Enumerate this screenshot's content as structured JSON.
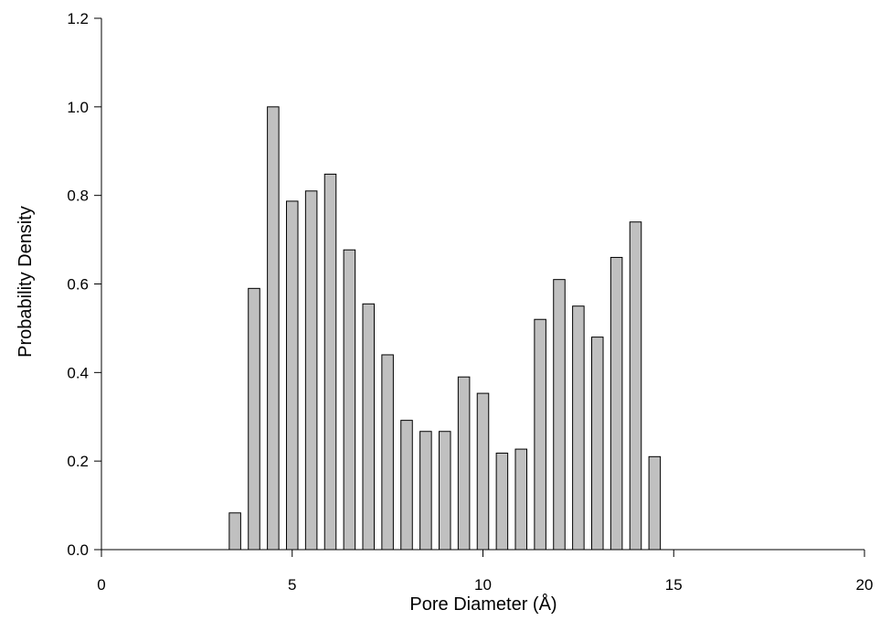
{
  "chart_data": {
    "type": "bar",
    "title": "",
    "xlabel": "Pore Diameter (Å)",
    "ylabel": "Probability Density",
    "xlim": [
      0,
      20
    ],
    "ylim": [
      0,
      1.2
    ],
    "x_ticks": [
      0,
      5,
      10,
      15,
      20
    ],
    "x_tick_labels": [
      "0",
      "5",
      "10",
      "15",
      "20"
    ],
    "y_ticks": [
      0.0,
      0.2,
      0.4,
      0.6,
      0.8,
      1.0,
      1.2
    ],
    "y_tick_labels": [
      "0.0",
      "0.2",
      "0.4",
      "0.6",
      "0.8",
      "1.0",
      "1.2"
    ],
    "grid": false,
    "legend": "none",
    "bar_color": "#c0c0c0",
    "bar_edge_color": "#000000",
    "bar_width": 0.3,
    "x": [
      3.5,
      4.0,
      4.5,
      5.0,
      5.5,
      6.0,
      6.5,
      7.0,
      7.5,
      8.0,
      8.5,
      9.0,
      9.5,
      10.0,
      10.5,
      11.0,
      11.5,
      12.0,
      12.5,
      13.0,
      13.5,
      14.0,
      14.5
    ],
    "values": [
      0.083,
      0.59,
      1.0,
      0.787,
      0.81,
      0.848,
      0.677,
      0.555,
      0.44,
      0.292,
      0.267,
      0.267,
      0.39,
      0.353,
      0.218,
      0.227,
      0.52,
      0.61,
      0.55,
      0.48,
      0.66,
      0.74,
      0.21
    ]
  }
}
